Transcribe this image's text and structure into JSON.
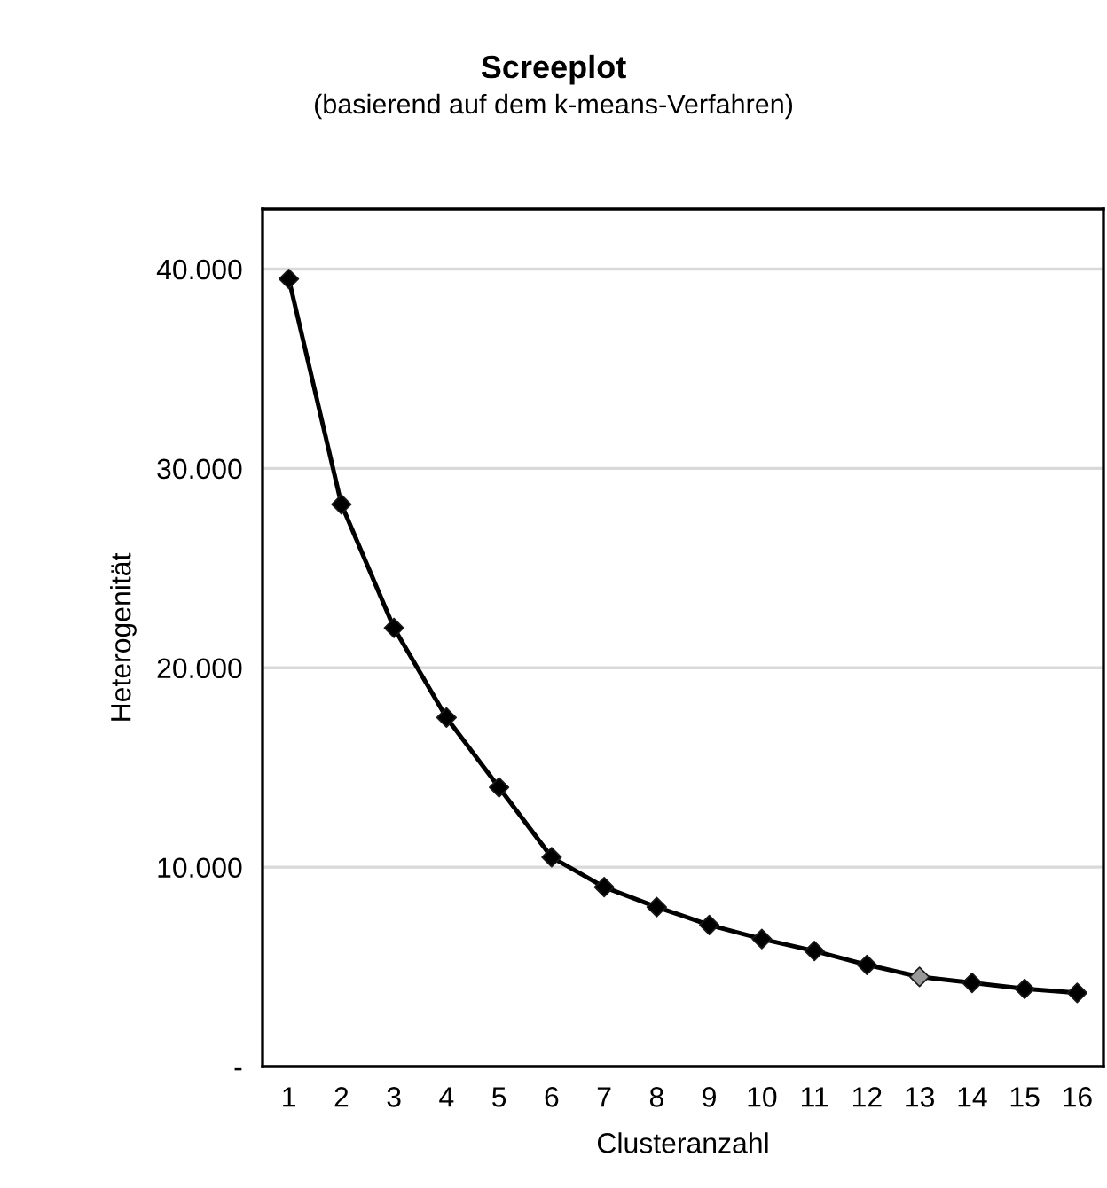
{
  "chart_data": {
    "type": "line",
    "title": "Screeplot",
    "subtitle": "(basierend auf dem k-means-Verfahren)",
    "xlabel": "Clusteranzahl",
    "ylabel": "Heterogenität",
    "categories": [
      "1",
      "2",
      "3",
      "4",
      "5",
      "6",
      "7",
      "8",
      "9",
      "10",
      "11",
      "12",
      "13",
      "14",
      "15",
      "16"
    ],
    "series": [
      {
        "color": "#000000",
        "values": [
          39500,
          28200,
          22000,
          17500,
          14000,
          10500,
          9000,
          8000,
          7100,
          6400,
          5800,
          5100,
          4500,
          4200,
          3900,
          3700
        ],
        "colors": [
          "#000000",
          "#000000",
          "#000000",
          "#000000",
          "#000000",
          "#000000",
          "#000000",
          "#000000",
          "#000000",
          "#000000",
          "#000000",
          "#000000",
          "#999999",
          "#000000",
          "#000000",
          "#000000"
        ]
      }
    ],
    "ylim": [
      0,
      43000
    ],
    "yticks": [
      {
        "value": 0,
        "label": "-"
      },
      {
        "value": 10000,
        "label": "10.000"
      },
      {
        "value": 20000,
        "label": "20.000"
      },
      {
        "value": 30000,
        "label": "30.000"
      },
      {
        "value": 40000,
        "label": "40.000"
      }
    ],
    "grid": "y",
    "marker": "diamond",
    "line_style": "solid",
    "legend": false
  }
}
